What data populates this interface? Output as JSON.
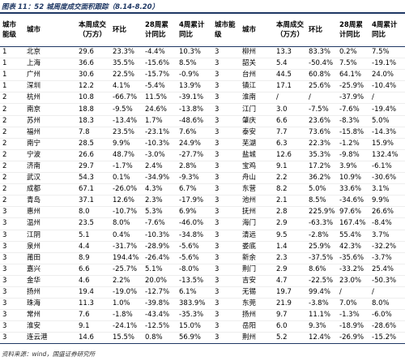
{
  "header": {
    "title": "图表 11：52 城周度成交面积跟踪（8.14-8.20）"
  },
  "table": {
    "headers": [
      "城市能级",
      "城市",
      "本周成交（万方）",
      "环比",
      "28周累计同比",
      "4周累计同比",
      "城市能级",
      "城市",
      "本周成交（万方）",
      "环比",
      "28周累计同比",
      "4周累计同比"
    ],
    "rows": [
      [
        "1",
        "北京",
        "29.6",
        "23.3%",
        "-4.4%",
        "10.3%",
        "3",
        "柳州",
        "13.3",
        "83.3%",
        "0.2%",
        "7.5%"
      ],
      [
        "1",
        "上海",
        "36.6",
        "35.5%",
        "-15.6%",
        "8.5%",
        "3",
        "韶关",
        "5.4",
        "-50.4%",
        "7.5%",
        "-19.1%"
      ],
      [
        "1",
        "广州",
        "30.6",
        "22.5%",
        "-15.7%",
        "-0.9%",
        "3",
        "台州",
        "44.5",
        "60.8%",
        "64.1%",
        "24.0%"
      ],
      [
        "1",
        "深圳",
        "12.2",
        "4.1%",
        "-5.4%",
        "13.9%",
        "3",
        "镇江",
        "17.1",
        "25.6%",
        "-25.9%",
        "-10.4%"
      ],
      [
        "2",
        "杭州",
        "10.8",
        "-66.7%",
        "11.5%",
        "-39.1%",
        "3",
        "淮南",
        "/",
        "/",
        "-37.9%",
        "/"
      ],
      [
        "2",
        "南京",
        "18.8",
        "-9.5%",
        "24.6%",
        "-13.8%",
        "3",
        "江门",
        "3.0",
        "-7.5%",
        "-7.6%",
        "-19.4%"
      ],
      [
        "2",
        "苏州",
        "18.3",
        "-13.4%",
        "1.7%",
        "-48.6%",
        "3",
        "肇庆",
        "6.6",
        "23.6%",
        "-8.3%",
        "5.0%"
      ],
      [
        "2",
        "福州",
        "7.8",
        "23.5%",
        "-23.1%",
        "7.6%",
        "3",
        "泰安",
        "7.7",
        "73.6%",
        "-15.8%",
        "-14.3%"
      ],
      [
        "2",
        "南宁",
        "28.5",
        "9.9%",
        "-10.3%",
        "24.9%",
        "3",
        "芜湖",
        "6.3",
        "22.3%",
        "-1.2%",
        "15.9%"
      ],
      [
        "2",
        "宁波",
        "26.6",
        "48.7%",
        "-3.0%",
        "-27.7%",
        "3",
        "盐城",
        "12.6",
        "35.3%",
        "-9.8%",
        "132.4%"
      ],
      [
        "2",
        "济南",
        "29.7",
        "-1.7%",
        "2.4%",
        "2.8%",
        "3",
        "宝鸡",
        "9.1",
        "17.2%",
        "3.9%",
        "-6.1%"
      ],
      [
        "2",
        "武汉",
        "54.3",
        "0.1%",
        "-34.9%",
        "-9.3%",
        "3",
        "舟山",
        "2.2",
        "36.2%",
        "10.9%",
        "-30.6%"
      ],
      [
        "2",
        "成都",
        "67.1",
        "-26.0%",
        "4.3%",
        "6.7%",
        "3",
        "东营",
        "8.2",
        "5.0%",
        "33.6%",
        "3.1%"
      ],
      [
        "2",
        "青岛",
        "37.1",
        "12.6%",
        "2.3%",
        "-17.9%",
        "3",
        "池州",
        "2.1",
        "8.5%",
        "-34.6%",
        "9.9%"
      ],
      [
        "3",
        "惠州",
        "8.0",
        "-10.7%",
        "5.3%",
        "6.9%",
        "3",
        "抚州",
        "2.8",
        "225.9%",
        "97.6%",
        "26.6%"
      ],
      [
        "3",
        "温州",
        "23.5",
        "8.0%",
        "-7.6%",
        "-46.0%",
        "3",
        "海门",
        "2.9",
        "-63.3%",
        "167.4%",
        "-8.4%"
      ],
      [
        "3",
        "江阴",
        "5.1",
        "0.4%",
        "-10.3%",
        "-34.8%",
        "3",
        "清远",
        "9.5",
        "-2.8%",
        "55.4%",
        "3.7%"
      ],
      [
        "3",
        "泉州",
        "4.4",
        "-31.7%",
        "-28.9%",
        "-5.6%",
        "3",
        "娄底",
        "1.4",
        "25.9%",
        "42.3%",
        "-32.2%"
      ],
      [
        "3",
        "莆田",
        "8.9",
        "194.4%",
        "-26.4%",
        "-5.6%",
        "3",
        "新余",
        "2.3",
        "-37.5%",
        "-35.6%",
        "-3.7%"
      ],
      [
        "3",
        "嘉兴",
        "6.6",
        "-25.7%",
        "5.1%",
        "-8.0%",
        "3",
        "荆门",
        "2.9",
        "8.6%",
        "-33.2%",
        "25.4%"
      ],
      [
        "3",
        "金华",
        "4.6",
        "2.2%",
        "20.0%",
        "-13.5%",
        "3",
        "吉安",
        "4.7",
        "-22.5%",
        "23.0%",
        "-50.3%"
      ],
      [
        "3",
        "扬州",
        "19.4",
        "-19.0%",
        "-12.7%",
        "6.1%",
        "3",
        "无锡",
        "19.7",
        "99.4%",
        "/",
        "/"
      ],
      [
        "3",
        "珠海",
        "11.3",
        "1.0%",
        "-39.8%",
        "383.9%",
        "3",
        "东莞",
        "21.9",
        "-3.8%",
        "7.0%",
        "8.0%"
      ],
      [
        "3",
        "常州",
        "7.6",
        "-1.8%",
        "-43.4%",
        "-35.3%",
        "3",
        "扬州",
        "9.7",
        "11.1%",
        "-1.3%",
        "-6.0%"
      ],
      [
        "3",
        "淮安",
        "9.1",
        "-24.1%",
        "-12.5%",
        "15.0%",
        "3",
        "岳阳",
        "6.0",
        "9.3%",
        "-18.9%",
        "-28.6%"
      ],
      [
        "3",
        "连云港",
        "14.6",
        "15.5%",
        "0.8%",
        "56.9%",
        "3",
        "荆州",
        "5.2",
        "12.4%",
        "-26.9%",
        "-15.2%"
      ]
    ]
  },
  "footer": {
    "source": "资料来源：wind，国盛证券研究所"
  }
}
